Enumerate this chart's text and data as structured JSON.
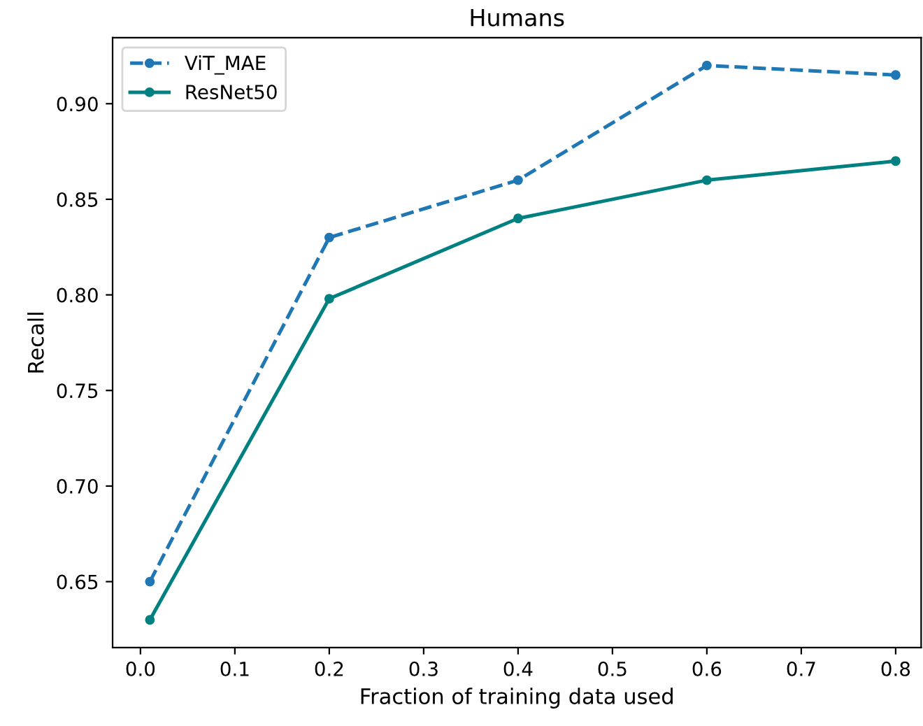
{
  "chart_data": {
    "type": "line",
    "title": "Humans",
    "xlabel": "Fraction of training data used",
    "ylabel": "Recall",
    "x": [
      0.01,
      0.2,
      0.4,
      0.6,
      0.8
    ],
    "series": [
      {
        "name": "ViT_MAE",
        "color": "#1f77b4",
        "values": [
          0.65,
          0.83,
          0.86,
          0.92,
          0.915
        ],
        "line_style": "dashed"
      },
      {
        "name": "ResNet50",
        "color": "#008080",
        "values": [
          0.63,
          0.798,
          0.84,
          0.86,
          0.87
        ],
        "line_style": "solid"
      }
    ],
    "xlim": [
      -0.0295,
      0.827
    ],
    "ylim": [
      0.6155,
      0.9345
    ],
    "xticks": [
      {
        "value": 0,
        "label": "0.0"
      },
      0.1,
      0.2,
      0.3,
      0.4,
      0.5,
      0.6,
      0.7,
      0.8
    ],
    "yticks": [
      0.65,
      {
        "value": 0.7,
        "label": "0.70"
      },
      0.75,
      {
        "value": 0.8,
        "label": "0.80"
      },
      0.85,
      {
        "value": 0.9,
        "label": "0.90"
      }
    ],
    "marker": "circle",
    "legend": "top left",
    "grid": false
  }
}
